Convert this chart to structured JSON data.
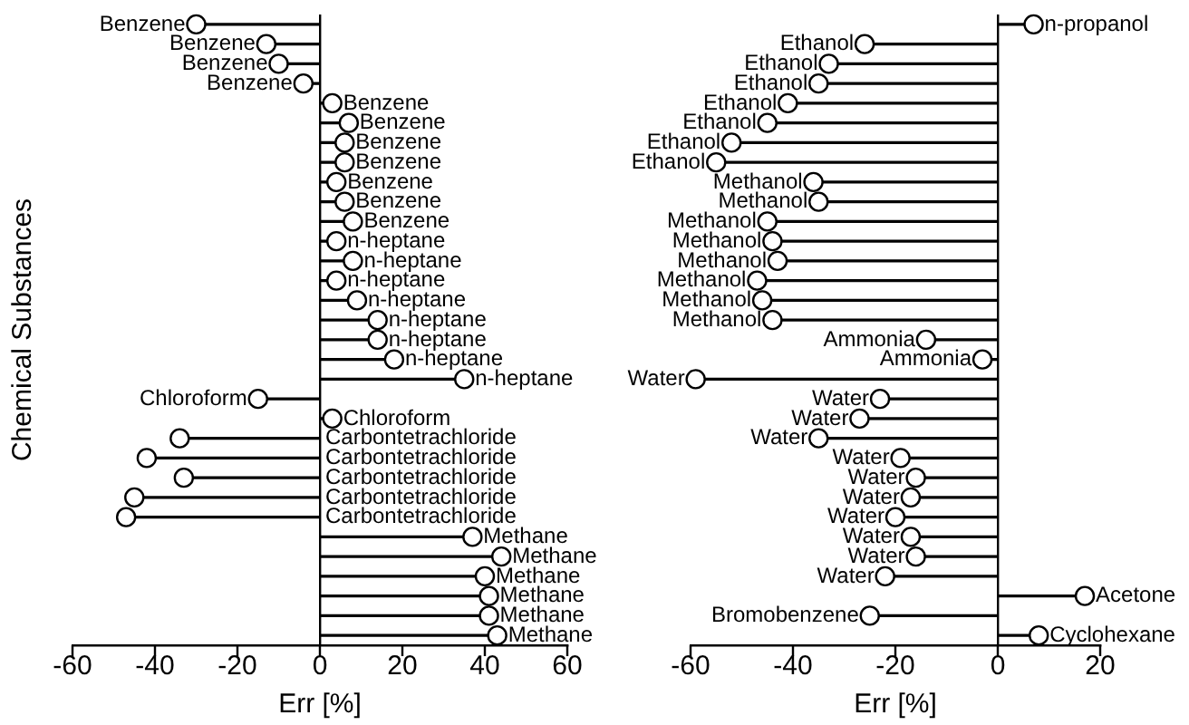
{
  "chart_data": [
    {
      "type": "lollipop",
      "orientation": "horizontal",
      "marker": "circle",
      "color": "#000000",
      "tick_labels": "x",
      "xlabel": "Err [%]",
      "ylabel": "Chemical Substances",
      "xlim": [
        -60,
        60
      ],
      "xticks": [
        -60,
        -40,
        -20,
        0,
        20,
        40,
        60
      ],
      "categories": [
        "Benzene",
        "Benzene",
        "Benzene",
        "Benzene",
        "Benzene",
        "Benzene",
        "Benzene",
        "Benzene",
        "Benzene",
        "Benzene",
        "Benzene",
        "n-heptane",
        "n-heptane",
        "n-heptane",
        "n-heptane",
        "n-heptane",
        "n-heptane",
        "n-heptane",
        "n-heptane",
        "Chloroform",
        "Chloroform",
        "Carbontetrachloride",
        "Carbontetrachloride",
        "Carbontetrachloride",
        "Carbontetrachloride",
        "Carbontetrachloride",
        "Methane",
        "Methane",
        "Methane",
        "Methane",
        "Methane",
        "Methane"
      ],
      "values": [
        -30,
        -13,
        -10,
        -4,
        3,
        7,
        6,
        6,
        4,
        6,
        8,
        4,
        8,
        4,
        9,
        14,
        14,
        18,
        35,
        -15,
        3,
        -34,
        -42,
        -33,
        -45,
        -47,
        37,
        44,
        40,
        41,
        41,
        43
      ]
    },
    {
      "type": "lollipop",
      "orientation": "horizontal",
      "marker": "circle",
      "color": "#000000",
      "tick_labels": "x",
      "xlabel": "Err [%]",
      "xlim": [
        -60,
        20
      ],
      "xticks": [
        -60,
        -40,
        -20,
        0,
        20
      ],
      "categories": [
        "n-propanol",
        "Ethanol",
        "Ethanol",
        "Ethanol",
        "Ethanol",
        "Ethanol",
        "Ethanol",
        "Ethanol",
        "Methanol",
        "Methanol",
        "Methanol",
        "Methanol",
        "Methanol",
        "Methanol",
        "Methanol",
        "Methanol",
        "Ammonia",
        "Ammonia",
        "Water",
        "Water",
        "Water",
        "Water",
        "Water",
        "Water",
        "Water",
        "Water",
        "Water",
        "Water",
        "Water",
        "Acetone",
        "Bromobenzene",
        "Cyclohexane"
      ],
      "values": [
        7,
        -26,
        -33,
        -35,
        -41,
        -45,
        -52,
        -55,
        -36,
        -35,
        -45,
        -44,
        -43,
        -47,
        -46,
        -44,
        -14,
        -3,
        -59,
        -23,
        -27,
        -35,
        -19,
        -16,
        -17,
        -20,
        -17,
        -16,
        -22,
        17,
        -25,
        8
      ]
    }
  ]
}
